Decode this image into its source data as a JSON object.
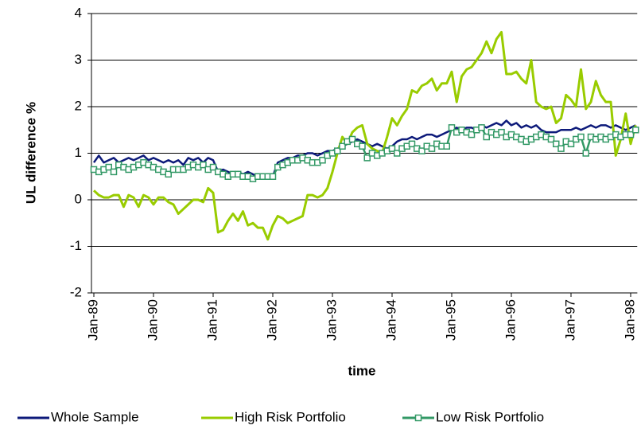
{
  "chart_data": {
    "type": "line",
    "y_label": "UL difference %",
    "x_label": "time",
    "categories": [
      "Jan-89",
      null,
      null,
      null,
      null,
      null,
      null,
      null,
      null,
      null,
      null,
      null,
      "Jan-90",
      null,
      null,
      null,
      null,
      null,
      null,
      null,
      null,
      null,
      null,
      null,
      "Jan-91",
      null,
      null,
      null,
      null,
      null,
      null,
      null,
      null,
      null,
      null,
      null,
      "Jan-92",
      null,
      null,
      null,
      null,
      null,
      null,
      null,
      null,
      null,
      null,
      null,
      "Jan-93",
      null,
      null,
      null,
      null,
      null,
      null,
      null,
      null,
      null,
      null,
      null,
      "Jan-94",
      null,
      null,
      null,
      null,
      null,
      null,
      null,
      null,
      null,
      null,
      null,
      "Jan-95",
      null,
      null,
      null,
      null,
      null,
      null,
      null,
      null,
      null,
      null,
      null,
      "Jan-96",
      null,
      null,
      null,
      null,
      null,
      null,
      null,
      null,
      null,
      null,
      null,
      "Jan-97",
      null,
      null,
      null,
      null,
      null,
      null,
      null,
      null,
      null,
      null,
      null,
      "Jan-98",
      null
    ],
    "series": [
      {
        "name": "Whole Sample",
        "color": "#0d1a7a",
        "marker": "none",
        "values": [
          0.8,
          0.95,
          0.8,
          0.85,
          0.9,
          0.8,
          0.85,
          0.9,
          0.85,
          0.9,
          0.95,
          0.85,
          0.9,
          0.85,
          0.8,
          0.85,
          0.8,
          0.85,
          0.75,
          0.9,
          0.85,
          0.9,
          0.8,
          0.9,
          0.85,
          0.6,
          0.65,
          0.6,
          0.55,
          0.6,
          0.55,
          0.6,
          0.55,
          0.5,
          0.55,
          0.5,
          0.5,
          0.8,
          0.85,
          0.9,
          0.9,
          0.95,
          0.95,
          1.0,
          1.0,
          0.95,
          1.0,
          1.05,
          1.05,
          1.1,
          1.15,
          1.2,
          1.25,
          1.3,
          1.25,
          1.2,
          1.15,
          1.2,
          1.15,
          1.1,
          1.15,
          1.25,
          1.3,
          1.3,
          1.35,
          1.3,
          1.35,
          1.4,
          1.4,
          1.35,
          1.4,
          1.45,
          1.5,
          1.55,
          1.5,
          1.55,
          1.55,
          1.5,
          1.6,
          1.55,
          1.6,
          1.65,
          1.6,
          1.7,
          1.6,
          1.65,
          1.55,
          1.6,
          1.55,
          1.6,
          1.5,
          1.45,
          1.45,
          1.45,
          1.5,
          1.5,
          1.5,
          1.55,
          1.5,
          1.55,
          1.6,
          1.55,
          1.6,
          1.6,
          1.55,
          1.6,
          1.55,
          1.5,
          1.55,
          1.6
        ]
      },
      {
        "name": "High Risk Portfolio",
        "color": "#99cc00",
        "marker": "none",
        "values": [
          0.2,
          0.1,
          0.05,
          0.05,
          0.1,
          0.1,
          -0.15,
          0.1,
          0.05,
          -0.15,
          0.1,
          0.05,
          -0.1,
          0.05,
          0.05,
          -0.05,
          -0.1,
          -0.3,
          -0.2,
          -0.1,
          0.0,
          0.0,
          -0.05,
          0.25,
          0.15,
          -0.7,
          -0.65,
          -0.45,
          -0.3,
          -0.45,
          -0.25,
          -0.55,
          -0.5,
          -0.6,
          -0.6,
          -0.85,
          -0.55,
          -0.35,
          -0.4,
          -0.5,
          -0.45,
          -0.4,
          -0.35,
          0.1,
          0.1,
          0.05,
          0.1,
          0.25,
          0.6,
          1.0,
          1.35,
          1.2,
          1.45,
          1.55,
          1.6,
          1.2,
          1.1,
          1.05,
          1.0,
          1.35,
          1.75,
          1.6,
          1.8,
          1.95,
          2.35,
          2.3,
          2.45,
          2.5,
          2.6,
          2.35,
          2.5,
          2.5,
          2.75,
          2.1,
          2.65,
          2.8,
          2.85,
          3.0,
          3.15,
          3.4,
          3.15,
          3.45,
          3.6,
          2.7,
          2.7,
          2.75,
          2.6,
          2.5,
          3.0,
          2.1,
          2.0,
          1.95,
          2.0,
          1.65,
          1.75,
          2.25,
          2.15,
          2.0,
          2.8,
          1.95,
          2.1,
          2.55,
          2.25,
          2.1,
          2.1,
          0.95,
          1.3,
          1.85,
          1.2,
          1.6
        ]
      },
      {
        "name": "Low Risk Portfolio",
        "color": "#339966",
        "marker": "square",
        "values": [
          0.65,
          0.6,
          0.65,
          0.7,
          0.6,
          0.75,
          0.7,
          0.65,
          0.7,
          0.75,
          0.8,
          0.75,
          0.7,
          0.65,
          0.6,
          0.55,
          0.65,
          0.65,
          0.65,
          0.7,
          0.75,
          0.7,
          0.75,
          0.65,
          0.7,
          0.6,
          0.55,
          0.5,
          0.55,
          0.55,
          0.5,
          0.5,
          0.45,
          0.5,
          0.5,
          0.5,
          0.5,
          0.7,
          0.75,
          0.8,
          0.85,
          0.85,
          0.9,
          0.85,
          0.8,
          0.8,
          0.85,
          0.95,
          1.0,
          1.05,
          1.15,
          1.25,
          1.3,
          1.2,
          1.15,
          0.9,
          1.0,
          0.95,
          1.0,
          1.05,
          1.1,
          1.0,
          1.1,
          1.15,
          1.2,
          1.1,
          1.05,
          1.15,
          1.1,
          1.2,
          1.15,
          1.15,
          1.55,
          1.45,
          1.5,
          1.45,
          1.4,
          1.5,
          1.55,
          1.35,
          1.45,
          1.4,
          1.45,
          1.35,
          1.4,
          1.35,
          1.3,
          1.25,
          1.3,
          1.35,
          1.4,
          1.35,
          1.3,
          1.2,
          1.1,
          1.25,
          1.2,
          1.3,
          1.35,
          1.0,
          1.35,
          1.3,
          1.35,
          1.3,
          1.35,
          1.4,
          1.35,
          1.4,
          1.4,
          1.5
        ]
      }
    ],
    "ylim": [
      -2,
      4
    ],
    "yticks": [
      -2,
      -1,
      0,
      1,
      2,
      3,
      4
    ],
    "grid": true,
    "legend": "bottom"
  }
}
